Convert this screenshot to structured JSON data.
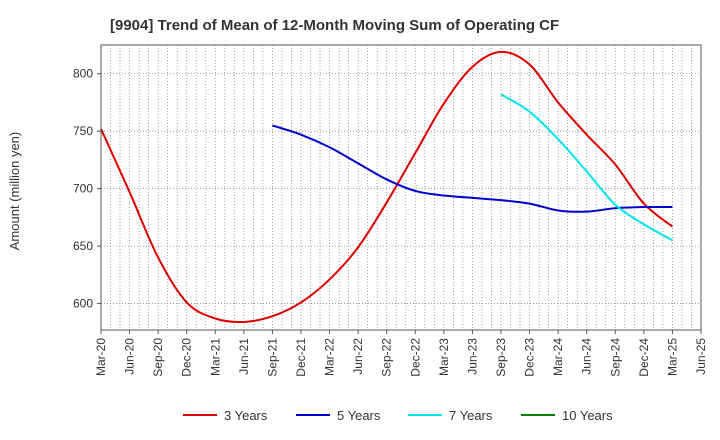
{
  "chart_data": {
    "type": "line",
    "title": "[9904]  Trend of Mean of 12-Month Moving Sum of Operating CF",
    "xlabel": "",
    "ylabel": "Amount (million yen)",
    "ylim": [
      577,
      825
    ],
    "yticks": [
      600,
      650,
      700,
      750,
      800
    ],
    "grid": true,
    "legend_position": "bottom",
    "categories": [
      "Mar-20",
      "Jun-20",
      "Sep-20",
      "Dec-20",
      "Mar-21",
      "Jun-21",
      "Sep-21",
      "Dec-21",
      "Mar-22",
      "Jun-22",
      "Sep-22",
      "Dec-22",
      "Mar-23",
      "Jun-23",
      "Sep-23",
      "Dec-23",
      "Mar-24",
      "Jun-24",
      "Sep-24",
      "Dec-24",
      "Mar-25",
      "Jun-25"
    ],
    "series": [
      {
        "name": "3 Years",
        "color": "#dd0000",
        "values": [
          752,
          697,
          640,
          601,
          587,
          584,
          589,
          601,
          621,
          649,
          688,
          731,
          774,
          806,
          819,
          808,
          775,
          747,
          721,
          687,
          667,
          null
        ]
      },
      {
        "name": "5 Years",
        "color": "#0000cc",
        "values": [
          null,
          null,
          null,
          null,
          null,
          null,
          755,
          747,
          736,
          722,
          708,
          698,
          694,
          692,
          690,
          687,
          681,
          680,
          683,
          684,
          684,
          null
        ]
      },
      {
        "name": "7 Years",
        "color": "#00e5ee",
        "values": [
          null,
          null,
          null,
          null,
          null,
          null,
          null,
          null,
          null,
          null,
          null,
          null,
          null,
          null,
          782,
          767,
          743,
          715,
          686,
          669,
          655,
          null
        ]
      },
      {
        "name": "10 Years",
        "color": "#008000",
        "values": [
          null,
          null,
          null,
          null,
          null,
          null,
          null,
          null,
          null,
          null,
          null,
          null,
          null,
          null,
          null,
          null,
          null,
          null,
          null,
          null,
          null,
          null
        ]
      }
    ]
  }
}
